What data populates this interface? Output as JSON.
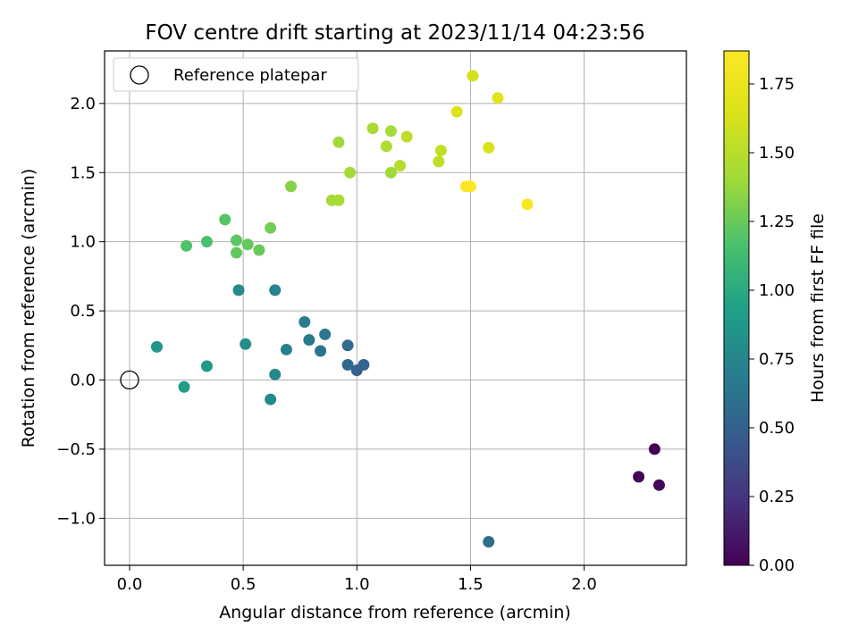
{
  "chart_data": {
    "type": "scatter",
    "title": "FOV centre drift starting at 2023/11/14 04:23:56",
    "xlabel": "Angular distance from reference (arcmin)",
    "ylabel": "Rotation from reference (arcmin)",
    "xlim": [
      -0.11,
      2.45
    ],
    "ylim": [
      -1.34,
      2.38
    ],
    "xticks": [
      "0.0",
      "0.5",
      "1.0",
      "1.5",
      "2.0"
    ],
    "xtick_values": [
      0.0,
      0.5,
      1.0,
      1.5,
      2.0
    ],
    "yticks": [
      "−1.0",
      "−0.5",
      "0.0",
      "0.5",
      "1.0",
      "1.5",
      "2.0"
    ],
    "ytick_values": [
      -1.0,
      -0.5,
      0.0,
      0.5,
      1.0,
      1.5,
      2.0
    ],
    "grid": true,
    "legend": {
      "position": "top-left",
      "entries": [
        "Reference platepar"
      ]
    },
    "colorbar": {
      "label": "Hours from first FF file",
      "colormap": "viridis",
      "range": [
        0.0,
        1.87
      ],
      "ticks": [
        "0.00",
        "0.25",
        "0.50",
        "0.75",
        "1.00",
        "1.25",
        "1.50",
        "1.75"
      ],
      "tick_values": [
        0.0,
        0.25,
        0.5,
        0.75,
        1.0,
        1.25,
        1.5,
        1.75
      ]
    },
    "reference_point": {
      "x": 0.0,
      "y": 0.0
    },
    "points": [
      {
        "x": 2.31,
        "y": -0.5,
        "c": 0.0
      },
      {
        "x": 2.24,
        "y": -0.7,
        "c": 0.02
      },
      {
        "x": 2.33,
        "y": -0.76,
        "c": 0.04
      },
      {
        "x": 1.58,
        "y": -1.17,
        "c": 0.58
      },
      {
        "x": 1.0,
        "y": 0.07,
        "c": 0.5
      },
      {
        "x": 1.03,
        "y": 0.11,
        "c": 0.52
      },
      {
        "x": 0.96,
        "y": 0.11,
        "c": 0.55
      },
      {
        "x": 0.96,
        "y": 0.25,
        "c": 0.56
      },
      {
        "x": 0.84,
        "y": 0.21,
        "c": 0.62
      },
      {
        "x": 0.86,
        "y": 0.33,
        "c": 0.64
      },
      {
        "x": 0.79,
        "y": 0.29,
        "c": 0.66
      },
      {
        "x": 0.77,
        "y": 0.42,
        "c": 0.68
      },
      {
        "x": 0.69,
        "y": 0.22,
        "c": 0.71
      },
      {
        "x": 0.64,
        "y": 0.65,
        "c": 0.73
      },
      {
        "x": 0.64,
        "y": 0.04,
        "c": 0.76
      },
      {
        "x": 0.62,
        "y": -0.14,
        "c": 0.78
      },
      {
        "x": 0.51,
        "y": 0.26,
        "c": 0.8
      },
      {
        "x": 0.48,
        "y": 0.65,
        "c": 0.78
      },
      {
        "x": 0.34,
        "y": 0.1,
        "c": 0.88
      },
      {
        "x": 0.24,
        "y": -0.05,
        "c": 0.9
      },
      {
        "x": 0.12,
        "y": 0.24,
        "c": 0.86
      },
      {
        "x": 0.25,
        "y": 0.97,
        "c": 1.18
      },
      {
        "x": 0.34,
        "y": 1.0,
        "c": 1.16
      },
      {
        "x": 0.42,
        "y": 1.16,
        "c": 1.2
      },
      {
        "x": 0.47,
        "y": 1.01,
        "c": 1.22
      },
      {
        "x": 0.52,
        "y": 0.98,
        "c": 1.24
      },
      {
        "x": 0.47,
        "y": 0.92,
        "c": 1.23
      },
      {
        "x": 0.57,
        "y": 0.94,
        "c": 1.25
      },
      {
        "x": 0.62,
        "y": 1.1,
        "c": 1.28
      },
      {
        "x": 0.71,
        "y": 1.4,
        "c": 1.33
      },
      {
        "x": 0.89,
        "y": 1.3,
        "c": 1.42
      },
      {
        "x": 0.92,
        "y": 1.3,
        "c": 1.44
      },
      {
        "x": 0.92,
        "y": 1.72,
        "c": 1.4
      },
      {
        "x": 0.97,
        "y": 1.5,
        "c": 1.42
      },
      {
        "x": 1.07,
        "y": 1.82,
        "c": 1.44
      },
      {
        "x": 1.13,
        "y": 1.69,
        "c": 1.46
      },
      {
        "x": 1.15,
        "y": 1.5,
        "c": 1.4
      },
      {
        "x": 1.15,
        "y": 1.8,
        "c": 1.42
      },
      {
        "x": 1.19,
        "y": 1.55,
        "c": 1.5
      },
      {
        "x": 1.22,
        "y": 1.76,
        "c": 1.52
      },
      {
        "x": 1.36,
        "y": 1.58,
        "c": 1.53
      },
      {
        "x": 1.37,
        "y": 1.66,
        "c": 1.55
      },
      {
        "x": 1.44,
        "y": 1.94,
        "c": 1.66
      },
      {
        "x": 1.51,
        "y": 2.2,
        "c": 1.62
      },
      {
        "x": 1.58,
        "y": 1.68,
        "c": 1.65
      },
      {
        "x": 1.62,
        "y": 2.04,
        "c": 1.69
      },
      {
        "x": 1.48,
        "y": 1.4,
        "c": 1.85
      },
      {
        "x": 1.5,
        "y": 1.4,
        "c": 1.86
      },
      {
        "x": 1.75,
        "y": 1.27,
        "c": 1.84
      }
    ]
  }
}
